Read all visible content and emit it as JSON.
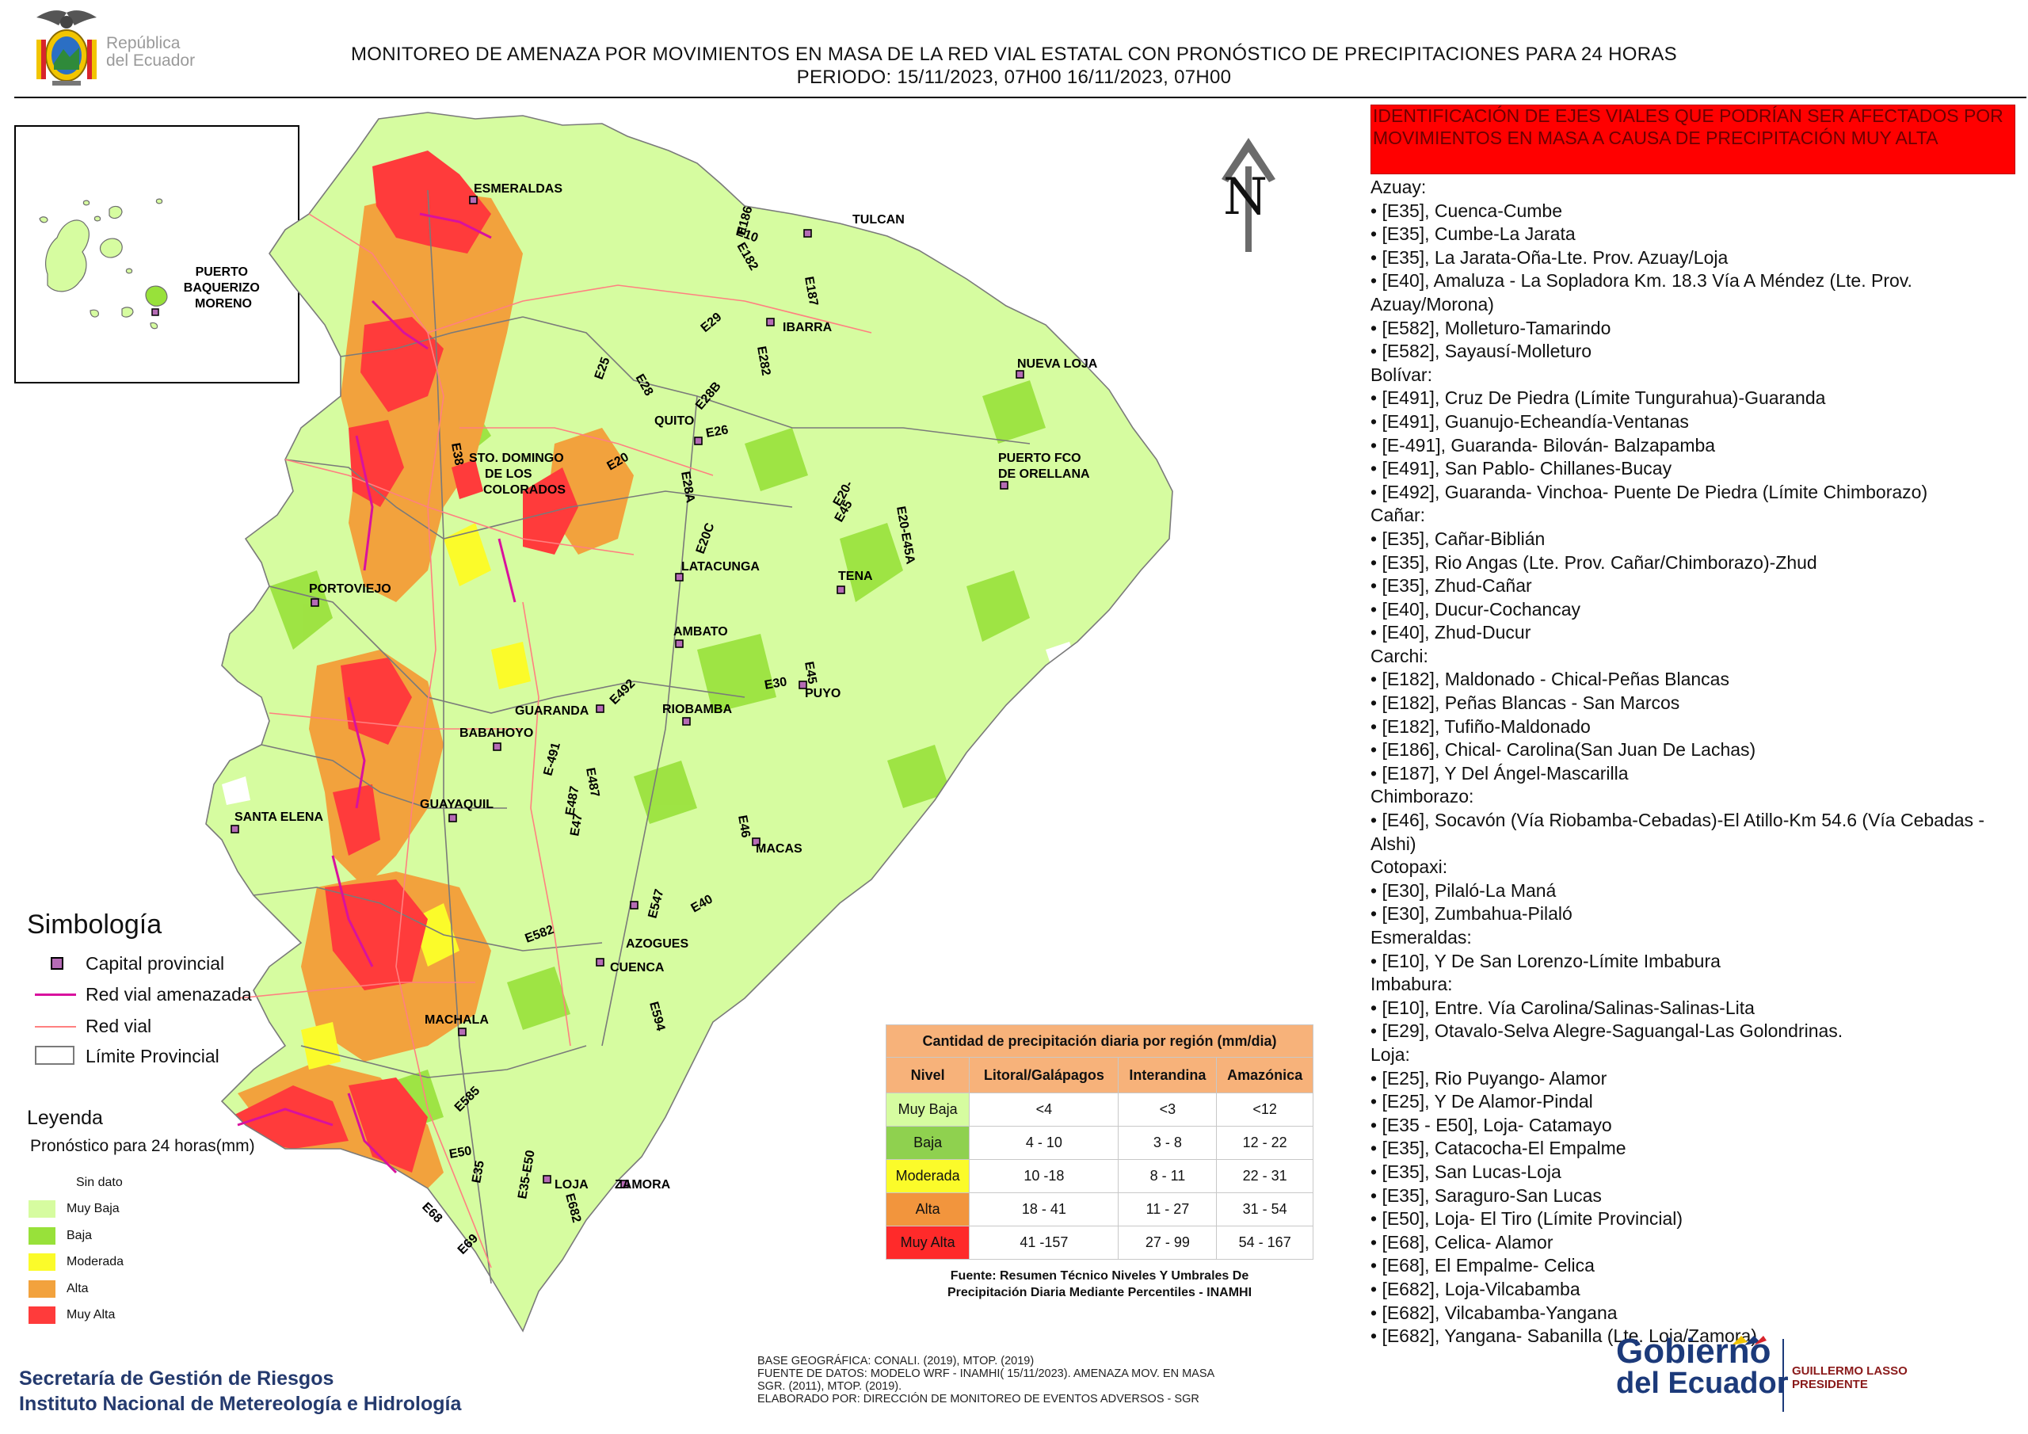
{
  "header": {
    "logo_text_line1": "República",
    "logo_text_line2": "del Ecuador",
    "title_line1": "MONITOREO DE AMENAZA POR MOVIMIENTOS EN MASA DE LA RED VIAL  ESTATAL  CON PRONÓSTICO  DE  PRECIPITACIONES PARA 24 HORAS",
    "title_line2": "PERIODO: 15/11/2023, 07H00 16/11/2023, 07H00"
  },
  "north_label": "N",
  "inset": {
    "city": "PUERTO BAQUERIZO MORENO",
    "city_lines": [
      "PUERTO",
      "BAQUERIZO",
      "MORENO"
    ]
  },
  "cities": {
    "esmeraldas": "ESMERALDAS",
    "tulcan": "TULCAN",
    "ibarra": "IBARRA",
    "nueva_loja": "NUEVA LOJA",
    "quito": "QUITO",
    "santo_domingo": [
      "STO. DOMINGO",
      "DE LOS",
      "COLORADOS"
    ],
    "orellana": [
      "PUERTO FCO",
      "DE ORELLANA"
    ],
    "portoviejo": "PORTOVIEJO",
    "latacunga": "LATACUNGA",
    "tena": "TENA",
    "ambato": "AMBATO",
    "puyo": "PUYO",
    "guaranda": "GUARANDA",
    "riobamba": "RIOBAMBA",
    "babahoyo": "BABAHOYO",
    "guayaquil": "GUAYAQUIL",
    "santa_elena": "SANTA ELENA",
    "macas": "MACAS",
    "azogues": "AZOGUES",
    "cuenca": "CUENCA",
    "machala": "MACHALA",
    "loja": "LOJA",
    "zamora": "ZAMORA"
  },
  "roads": {
    "e10": "E10",
    "e182": "E182",
    "e186": "E186",
    "e187": "E187",
    "e29": "E29",
    "e282": "E282",
    "e25": "E25",
    "e28b": "E28B",
    "e28": "E28",
    "e20": "E20",
    "e28a": "E28A",
    "e20c": "E20C",
    "e20b": "E20-",
    "e45": "E45",
    "e45a": "E20-E45A",
    "e38": "E38",
    "e30": "E30",
    "e492": "E492",
    "e491": "E-491",
    "e487": "E487",
    "e47": "E47",
    "e46": "E46",
    "e547": "E547",
    "e40": "E40",
    "e582": "E582",
    "e594": "E594",
    "e585": "E585",
    "e50": "E50",
    "e35": "E35",
    "e682": "E682",
    "e68": "E68",
    "e69": "E69",
    "e3550": "E35-E50",
    "e35b": "E35"
  },
  "alert_title": "IDENTIFICACIÓN DE EJES VIALES QUE PODRÍAN SER AFECTADOS POR MOVIMIENTOS EN MASA A CAUSA DE PRECIPITACIÓN MUY ALTA",
  "road_list": [
    {
      "t": "Azuay:",
      "w": false
    },
    {
      "t": "• [E35], Cuenca-Cumbe",
      "w": false
    },
    {
      "t": "• [E35], Cumbe-La Jarata",
      "w": false
    },
    {
      "t": "• [E35], La Jarata-Oña-Lte. Prov. Azuay/Loja",
      "w": false
    },
    {
      "t": "• [E40], Amaluza - La Sopladora Km. 18.3 Vía A Méndez (Lte. Prov. Azuay/Morona)",
      "w": true
    },
    {
      "t": "• [E582], Molleturo-Tamarindo",
      "w": false
    },
    {
      "t": "• [E582], Sayausí-Molleturo",
      "w": false
    },
    {
      "t": "Bolívar:",
      "w": false
    },
    {
      "t": "• [E491], Cruz De Piedra (Límite Tungurahua)-Guaranda",
      "w": false
    },
    {
      "t": "• [E491], Guanujo-Echeandía-Ventanas",
      "w": false
    },
    {
      "t": "• [E-491], Guaranda- Bilován- Balzapamba",
      "w": false
    },
    {
      "t": "• [E491], San Pablo- Chillanes-Bucay",
      "w": false
    },
    {
      "t": "• [E492], Guaranda- Vinchoa- Puente De Piedra (Límite Chimborazo)",
      "w": false
    },
    {
      "t": "Cañar:",
      "w": false
    },
    {
      "t": "• [E35], Cañar-Biblián",
      "w": false
    },
    {
      "t": "• [E35], Rio Angas (Lte. Prov. Cañar/Chimborazo)-Zhud",
      "w": false
    },
    {
      "t": "• [E35], Zhud-Cañar",
      "w": false
    },
    {
      "t": "• [E40], Ducur-Cochancay",
      "w": false
    },
    {
      "t": "• [E40], Zhud-Ducur",
      "w": false
    },
    {
      "t": "Carchi:",
      "w": false
    },
    {
      "t": "• [E182], Maldonado - Chical-Peñas Blancas",
      "w": false
    },
    {
      "t": "• [E182], Peñas Blancas - San Marcos",
      "w": false
    },
    {
      "t": "• [E182], Tufiño-Maldonado",
      "w": false
    },
    {
      "t": "• [E186], Chical- Carolina(San Juan De Lachas)",
      "w": false
    },
    {
      "t": "• [E187], Y Del Ángel-Mascarilla",
      "w": false
    },
    {
      "t": "Chimborazo:",
      "w": false
    },
    {
      "t": "• [E46], Socavón (Vía Riobamba-Cebadas)-El Atillo-Km 54.6 (Vía Cebadas - Alshi)",
      "w": true
    },
    {
      "t": "Cotopaxi:",
      "w": false
    },
    {
      "t": "• [E30], Pilaló-La Maná",
      "w": false
    },
    {
      "t": "• [E30], Zumbahua-Pilaló",
      "w": false
    },
    {
      "t": "Esmeraldas:",
      "w": false
    },
    {
      "t": "• [E10], Y De San Lorenzo-Límite Imbabura",
      "w": false
    },
    {
      "t": "Imbabura:",
      "w": false
    },
    {
      "t": "• [E10], Entre. Vía Carolina/Salinas-Salinas-Lita",
      "w": false
    },
    {
      "t": "• [E29], Otavalo-Selva Alegre-Saguangal-Las Golondrinas.",
      "w": false
    },
    {
      "t": "Loja:",
      "w": false
    },
    {
      "t": "• [E25], Rio Puyango- Alamor",
      "w": false
    },
    {
      "t": "• [E25], Y De Alamor-Pindal",
      "w": false
    },
    {
      "t": "• [E35 - E50], Loja- Catamayo",
      "w": false
    },
    {
      "t": "• [E35], Catacocha-El Empalme",
      "w": false
    },
    {
      "t": "• [E35], San Lucas-Loja",
      "w": false
    },
    {
      "t": "• [E35], Saraguro-San Lucas",
      "w": false
    },
    {
      "t": "• [E50], Loja- El Tiro (Límite Provincial)",
      "w": false
    },
    {
      "t": "• [E68], Celica- Alamor",
      "w": false
    },
    {
      "t": "• [E68], El Empalme- Celica",
      "w": false
    },
    {
      "t": "• [E682], Loja-Vilcabamba",
      "w": false
    },
    {
      "t": "• [E682], Vilcabamba-Yangana",
      "w": false
    },
    {
      "t": "• [E682], Yangana- Sabanilla (Lte. Loja/Zamora)",
      "w": false
    }
  ],
  "simbologia": {
    "title": "Simbología",
    "items": [
      "Capital provincial",
      "Red vial amenazada",
      "Red vial",
      "Límite Provincial"
    ]
  },
  "leyenda": {
    "title": "Leyenda",
    "subtitle": "Pronóstico para 24 horas(mm)",
    "items": [
      {
        "label": "Sin dato",
        "color": "#ffffff"
      },
      {
        "label": "Muy Baja",
        "color": "#d6fca0"
      },
      {
        "label": "Baja",
        "color": "#98e13a"
      },
      {
        "label": "Moderada",
        "color": "#fbfb2a"
      },
      {
        "label": "Alta",
        "color": "#f2a23d"
      },
      {
        "label": "Muy Alta",
        "color": "#ff3b3b"
      }
    ]
  },
  "precip_table": {
    "caption": "Cantidad de precipitación diaria por región (mm/dia)",
    "headers": [
      "Nivel",
      "Litoral/Galápagos",
      "Interandina",
      "Amazónica"
    ],
    "rows": [
      {
        "nivel": "Muy Baja",
        "color": "#d6fca0",
        "litoral": "<4",
        "interandina": "<3",
        "amazonica": "<12"
      },
      {
        "nivel": "Baja",
        "color": "#8fd14f",
        "litoral": "4 - 10",
        "interandina": "3 - 8",
        "amazonica": "12 - 22"
      },
      {
        "nivel": "Moderada",
        "color": "#fbfb2a",
        "litoral": "10 -18",
        "interandina": "8 - 11",
        "amazonica": "22 - 31"
      },
      {
        "nivel": "Alta",
        "color": "#f2953d",
        "litoral": "18 - 41",
        "interandina": "11 - 27",
        "amazonica": "31 - 54"
      },
      {
        "nivel": "Muy Alta",
        "color": "#ff2a2a",
        "litoral": "41 -157",
        "interandina": "27 - 99",
        "amazonica": "54 - 167"
      }
    ],
    "source_line1": "Fuente: Resumen Técnico Niveles Y Umbrales De",
    "source_line2": "Precipitación Diaria Mediante Percentiles - INAMHI"
  },
  "footer": {
    "org_line1": "Secretaría de Gestión de Riesgos",
    "org_line2": "Instituto Nacional de Metereología e Hidrología",
    "base_line1": "BASE GEOGRÁFICA: CONALI. (2019), MTOP. (2019)",
    "base_line2": "FUENTE DE DATOS: MODELO WRF - INAMHI( 15/11/2023).  AMENAZA MOV. EN MASA",
    "base_line3": "SGR. (2011), MTOP. (2019).",
    "base_line4": "ELABORADO POR: DIRECCIÓN DE MONITOREO DE EVENTOS ADVERSOS - SGR",
    "gob_line1": "Gobierno",
    "gob_line2": "del Ecuador",
    "pres_line1": "GUILLERMO LASSO",
    "pres_line2": "PRESIDENTE"
  },
  "colors": {
    "muy_baja": "#d6fca0",
    "baja": "#98e13a",
    "moderada": "#fbfb2a",
    "alta": "#f2a23d",
    "muy_alta": "#ff3b3b",
    "road_threat": "#d9119e",
    "road": "#ff8080",
    "alert_bg": "#ff0000"
  }
}
